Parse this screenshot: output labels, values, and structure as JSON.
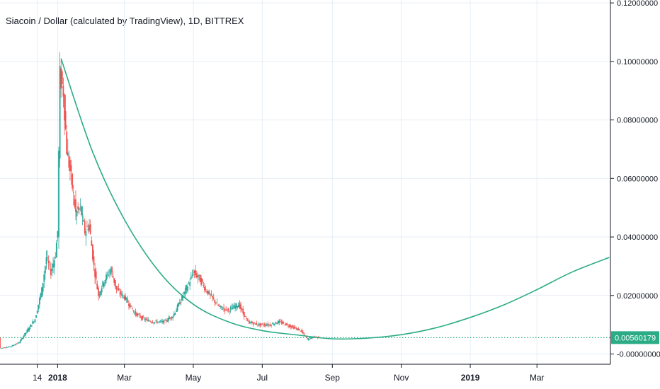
{
  "title": "Siacoin / Dollar (calculated by TradingView), 1D, BITTREX",
  "colors": {
    "up": "#26a69a",
    "down": "#ef5350",
    "curve": "#2bac86",
    "price_line": "#2bac86",
    "grid": "#e6eef5",
    "axis": "#131722"
  },
  "chart_data": {
    "type": "candlestick",
    "title": "Siacoin / Dollar (calculated by TradingView), 1D, BITTREX",
    "y_axis": {
      "ticks": [
        "0.12000000",
        "0.10000000",
        "0.08000000",
        "0.06000000",
        "0.04000000",
        "0.02000000",
        "-0.00000000"
      ],
      "tick_values": [
        0.12,
        0.1,
        0.08,
        0.06,
        0.04,
        0.02,
        0.0
      ],
      "range": [
        -0.0035,
        0.121
      ]
    },
    "x_axis": {
      "ticks": [
        "14",
        "2018",
        "Mar",
        "May",
        "Jul",
        "Sep",
        "Nov",
        "2019",
        "Mar"
      ],
      "tick_dates": [
        "2017-12-14",
        "2018-01-01",
        "2018-03-01",
        "2018-05-01",
        "2018-07-01",
        "2018-09-01",
        "2018-11-01",
        "2019-01-01",
        "2019-03-01"
      ],
      "bold_ticks": [
        "2018",
        "2019"
      ],
      "range": [
        "2017-11-11",
        "2019-05-05"
      ]
    },
    "current_price": "0.00560179",
    "current_price_value": 0.0056,
    "price_series": {
      "name": "",
      "points": [
        [
          "2017-11-11",
          0.002
        ],
        [
          "2017-11-20",
          0.0025
        ],
        [
          "2017-11-28",
          0.004
        ],
        [
          "2017-12-05",
          0.008
        ],
        [
          "2017-12-12",
          0.012
        ],
        [
          "2017-12-18",
          0.022
        ],
        [
          "2017-12-22",
          0.033
        ],
        [
          "2017-12-26",
          0.028
        ],
        [
          "2017-12-30",
          0.034
        ],
        [
          "2018-01-01",
          0.042
        ],
        [
          "2018-01-03",
          0.095
        ],
        [
          "2018-01-06",
          0.09
        ],
        [
          "2018-01-09",
          0.07
        ],
        [
          "2018-01-13",
          0.06
        ],
        [
          "2018-01-17",
          0.048
        ],
        [
          "2018-01-21",
          0.05
        ],
        [
          "2018-01-25",
          0.042
        ],
        [
          "2018-01-29",
          0.044
        ],
        [
          "2018-02-02",
          0.03
        ],
        [
          "2018-02-06",
          0.02
        ],
        [
          "2018-02-11",
          0.025
        ],
        [
          "2018-02-17",
          0.029
        ],
        [
          "2018-02-22",
          0.022
        ],
        [
          "2018-03-02",
          0.019
        ],
        [
          "2018-03-10",
          0.014
        ],
        [
          "2018-03-18",
          0.012
        ],
        [
          "2018-03-26",
          0.011
        ],
        [
          "2018-04-05",
          0.011
        ],
        [
          "2018-04-13",
          0.013
        ],
        [
          "2018-04-22",
          0.02
        ],
        [
          "2018-04-28",
          0.025
        ],
        [
          "2018-05-01",
          0.028
        ],
        [
          "2018-05-06",
          0.026
        ],
        [
          "2018-05-12",
          0.022
        ],
        [
          "2018-05-18",
          0.019
        ],
        [
          "2018-05-24",
          0.016
        ],
        [
          "2018-06-01",
          0.015
        ],
        [
          "2018-06-10",
          0.017
        ],
        [
          "2018-06-18",
          0.011
        ],
        [
          "2018-06-28",
          0.01
        ],
        [
          "2018-07-08",
          0.01
        ],
        [
          "2018-07-16",
          0.011
        ],
        [
          "2018-07-26",
          0.0095
        ],
        [
          "2018-08-04",
          0.008
        ],
        [
          "2018-08-10",
          0.005
        ],
        [
          "2018-08-16",
          0.006
        ],
        [
          "2018-08-20",
          0.0056
        ]
      ]
    },
    "fitted_curve": {
      "name": "",
      "points": [
        [
          "2018-01-04",
          0.101
        ],
        [
          "2018-02-01",
          0.069
        ],
        [
          "2018-03-01",
          0.046
        ],
        [
          "2018-04-01",
          0.028
        ],
        [
          "2018-05-01",
          0.017
        ],
        [
          "2018-06-01",
          0.011
        ],
        [
          "2018-07-01",
          0.008
        ],
        [
          "2018-08-01",
          0.0065
        ],
        [
          "2018-09-01",
          0.0052
        ],
        [
          "2018-10-01",
          0.0054
        ],
        [
          "2018-11-01",
          0.0066
        ],
        [
          "2018-12-01",
          0.0089
        ],
        [
          "2019-01-01",
          0.0125
        ],
        [
          "2019-02-01",
          0.017
        ],
        [
          "2019-03-01",
          0.022
        ],
        [
          "2019-04-01",
          0.028
        ],
        [
          "2019-05-04",
          0.033
        ]
      ]
    }
  }
}
